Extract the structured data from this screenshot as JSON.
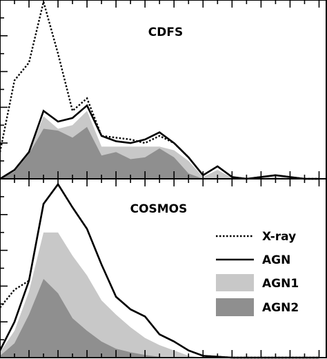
{
  "chart_data": [
    {
      "type": "area",
      "title": "CDFS",
      "xlabel": "",
      "ylabel": "",
      "x": [
        0,
        1,
        2,
        3,
        4,
        5,
        6,
        7,
        8,
        9,
        10,
        11,
        12,
        13,
        14,
        15,
        16,
        17,
        18,
        19,
        20,
        21,
        22
      ],
      "xlim": [
        0,
        22.5
      ],
      "ylim": [
        0,
        10
      ],
      "series": [
        {
          "style": "dotted",
          "color": "#000000",
          "values": [
            1.5,
            5.5,
            6.5,
            9.9,
            7.0,
            3.8,
            4.5,
            2.4,
            2.3,
            2.2,
            2.0,
            2.4,
            2.0,
            1.2,
            0.2,
            0.7,
            0.1,
            0.0,
            0.1,
            0.2,
            0.1,
            0.0,
            0.0
          ]
        },
        {
          "style": "solid",
          "color": "#000000",
          "values": [
            0.0,
            0.5,
            1.5,
            3.8,
            3.2,
            3.4,
            4.1,
            2.4,
            2.1,
            2.0,
            2.2,
            2.6,
            2.0,
            1.2,
            0.2,
            0.7,
            0.1,
            0.0,
            0.1,
            0.2,
            0.1,
            0.0,
            0.0
          ]
        },
        {
          "style": "fill",
          "color": "#c8c8c8",
          "values": [
            0.0,
            0.5,
            1.5,
            3.5,
            2.8,
            3.0,
            3.8,
            1.8,
            1.8,
            1.8,
            1.8,
            1.8,
            1.6,
            1.0,
            0.1,
            0.5,
            0.05,
            0.0,
            0.05,
            0.1,
            0.05,
            0.0,
            0.0
          ]
        },
        {
          "style": "fill",
          "color": "#8f8f8f",
          "values": [
            0.0,
            0.4,
            1.4,
            2.8,
            2.7,
            2.3,
            2.9,
            1.3,
            1.5,
            1.1,
            1.2,
            1.7,
            1.2,
            0.3,
            0.0,
            0.0,
            0.0,
            0.0,
            0.0,
            0.0,
            0.0,
            0.0,
            0.0
          ]
        }
      ]
    },
    {
      "type": "area",
      "title": "COSMOS",
      "xlabel": "",
      "ylabel": "",
      "x": [
        0,
        1,
        2,
        3,
        4,
        5,
        6,
        7,
        8,
        9,
        10,
        11,
        12,
        13,
        14,
        15,
        16,
        17,
        18,
        19,
        20,
        21,
        22
      ],
      "xlim": [
        0,
        22.5
      ],
      "ylim": [
        0,
        10
      ],
      "legend": {
        "placement": "right",
        "entries": [
          "X-ray",
          "AGN",
          "AGN1",
          "AGN2"
        ]
      },
      "series": [
        {
          "name": "X-ray",
          "style": "dotted",
          "color": "#000000",
          "values": [
            2.8,
            3.8,
            4.3,
            8.6,
            9.7,
            8.4,
            7.2,
            5.2,
            3.4,
            2.7,
            2.3,
            1.3,
            0.9,
            0.4,
            0.1,
            0.05,
            0.0,
            0.0,
            0.0,
            0.0,
            0.0,
            0.0,
            0.0
          ]
        },
        {
          "name": "AGN",
          "style": "solid",
          "color": "#000000",
          "values": [
            0.4,
            2.0,
            4.3,
            8.6,
            9.7,
            8.4,
            7.2,
            5.2,
            3.4,
            2.7,
            2.3,
            1.3,
            0.9,
            0.4,
            0.1,
            0.05,
            0.0,
            0.0,
            0.0,
            0.0,
            0.0,
            0.0,
            0.0
          ]
        },
        {
          "name": "AGN1",
          "style": "fill",
          "color": "#c8c8c8",
          "values": [
            0.3,
            1.5,
            3.7,
            7.0,
            7.0,
            5.7,
            4.6,
            3.2,
            2.4,
            1.7,
            1.1,
            0.7,
            0.4,
            0.1,
            0.0,
            0.0,
            0.0,
            0.0,
            0.0,
            0.0,
            0.0,
            0.0,
            0.0
          ]
        },
        {
          "name": "AGN2",
          "style": "fill",
          "color": "#8f8f8f",
          "values": [
            0.1,
            0.8,
            2.4,
            4.4,
            3.6,
            2.2,
            1.5,
            0.9,
            0.5,
            0.3,
            0.15,
            0.05,
            0.0,
            0.0,
            0.0,
            0.0,
            0.0,
            0.0,
            0.0,
            0.0,
            0.0,
            0.0,
            0.0
          ]
        }
      ]
    }
  ]
}
